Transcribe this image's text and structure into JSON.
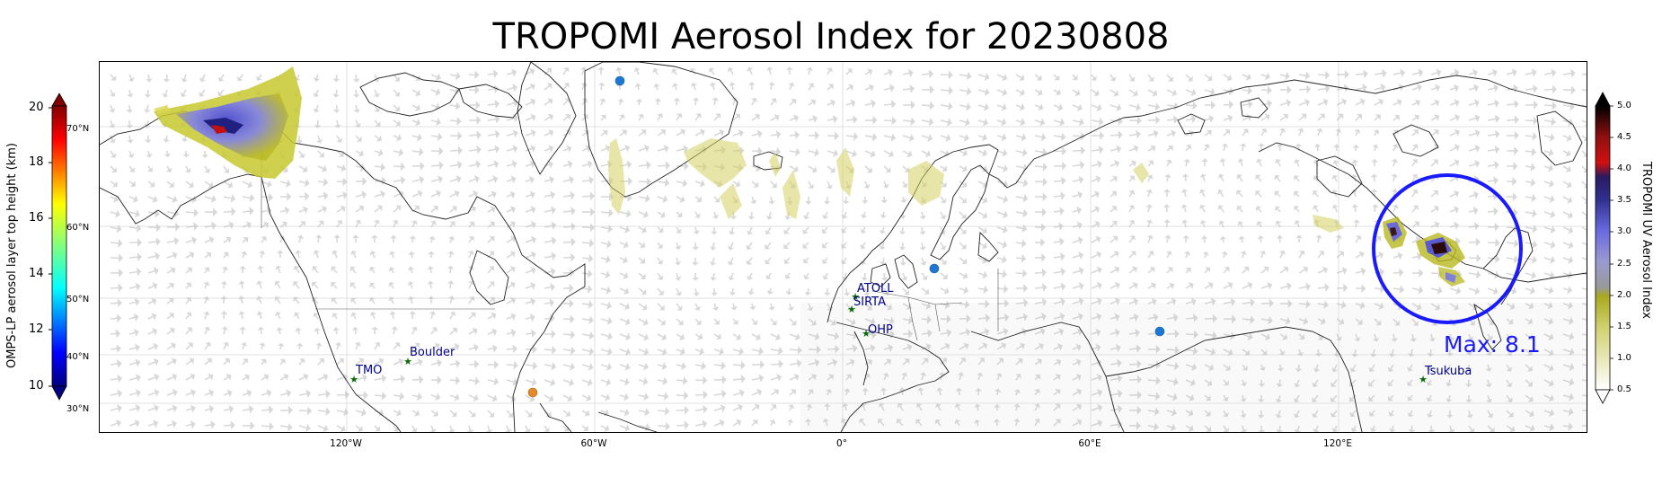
{
  "title": "TROPOMI Aerosol Index for 20230808",
  "left_colorbar": {
    "label": "OMPS-LP aerosol layer top height (km)",
    "ticks": [
      "20",
      "18",
      "16",
      "14",
      "12",
      "10"
    ],
    "range": [
      10,
      20
    ],
    "colormap": "jet"
  },
  "right_colorbar": {
    "label": "TROPOMI UV Aerosol Index",
    "ticks": [
      "5.0",
      "4.5",
      "4.0",
      "3.5",
      "3.0",
      "2.5",
      "2.0",
      "1.5",
      "1.0",
      "0.5"
    ],
    "range": [
      0.5,
      5.0
    ],
    "colors": [
      "#ffffff",
      "#b8b800",
      "#9a9aa0",
      "#7070e0",
      "#2020a0",
      "#d01010",
      "#000000"
    ]
  },
  "lat_labels": [
    "70°N",
    "60°N",
    "50°N",
    "40°N",
    "30°N"
  ],
  "lon_labels": [
    "120°W",
    "60°W",
    "0°",
    "60°E",
    "120°E"
  ],
  "stations": [
    {
      "name": "TMO"
    },
    {
      "name": "Boulder"
    },
    {
      "name": "ATOLL"
    },
    {
      "name": "SIRTA"
    },
    {
      "name": "OHP"
    },
    {
      "name": "Tsukuba"
    }
  ],
  "markers": {
    "blue_dot_color": "#1f77d4",
    "orange_dot_color": "#e08a2a",
    "circle_color": "#1a1aff"
  },
  "max_text": "Max: 8.1"
}
